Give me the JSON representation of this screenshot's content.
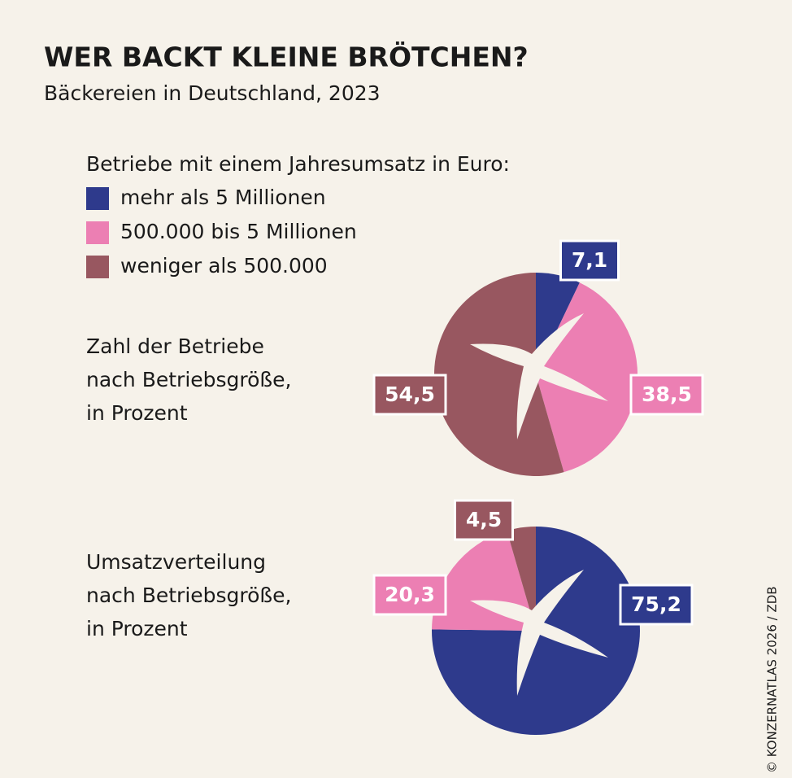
{
  "title": "WER BACKT KLEINE BRÖTCHEN?",
  "subtitle": "Bäckereien in Deutschland, 2023",
  "legend": {
    "title": "Betriebe mit einem Jahresumsatz in Euro:",
    "categories": [
      "mehr als 5 Millionen",
      "500.000 bis 5 Millionen",
      "weniger als 500.000"
    ],
    "colors": [
      "#2e3a8c",
      "#ec7fb3",
      "#985760"
    ]
  },
  "credit": "© KONZERNATLAS 2026 / ZDB",
  "chart_data": [
    {
      "type": "pie",
      "label": [
        "Zahl der Betriebe",
        "nach Betriebsgröße,",
        "in Prozent"
      ],
      "values": [
        7.1,
        38.5,
        54.5
      ],
      "value_labels": [
        "7,1",
        "38,5",
        "54,5"
      ]
    },
    {
      "type": "pie",
      "label": [
        "Umsatzverteilung",
        "nach Betriebsgröße,",
        "in Prozent"
      ],
      "values": [
        75.2,
        20.3,
        4.5
      ],
      "value_labels": [
        "75,2",
        "20,3",
        "4,5"
      ]
    }
  ]
}
